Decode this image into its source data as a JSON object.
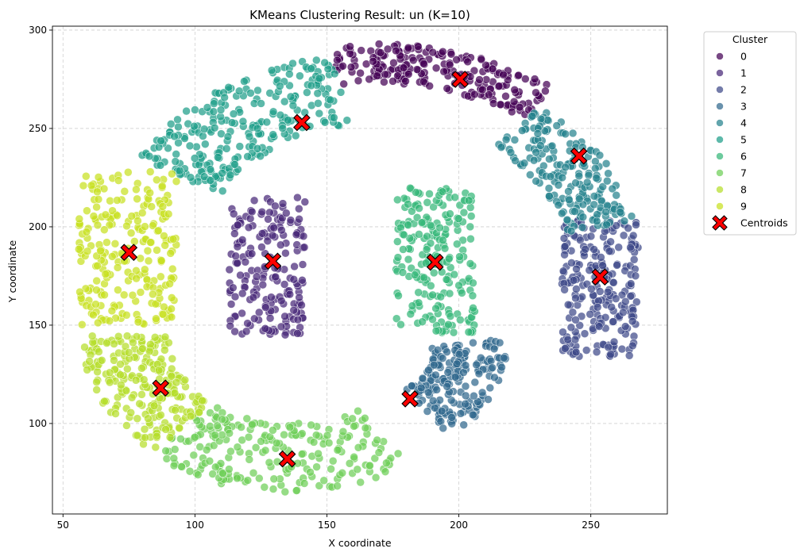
{
  "chart_data": {
    "type": "scatter",
    "title": "KMeans Clustering Result: un (K=10)",
    "xlabel": "X coordinate",
    "ylabel": "Y coordinate",
    "xlim": [
      46,
      279
    ],
    "ylim": [
      54,
      302
    ],
    "xticks": [
      50,
      100,
      150,
      200,
      250
    ],
    "yticks": [
      100,
      150,
      200,
      250,
      300
    ],
    "grid": true,
    "legend": {
      "title": "Cluster",
      "placement": "outside-top-right",
      "entries": [
        "0",
        "1",
        "2",
        "3",
        "4",
        "5",
        "6",
        "7",
        "8",
        "9",
        "Centroids"
      ]
    },
    "cluster_colors": [
      "#440154",
      "#482878",
      "#3e4989",
      "#31688e",
      "#26828e",
      "#1f9e89",
      "#35b779",
      "#6ece58",
      "#b5de2b",
      "#c8e020"
    ],
    "centroid_color": "#ff0000",
    "point_counts": [
      220,
      190,
      230,
      200,
      200,
      260,
      210,
      230,
      230,
      230
    ],
    "regions": [
      {
        "cluster": "0",
        "shape": "arc",
        "cx": 170,
        "cy": 185,
        "r_inner": 88,
        "r_outer": 108,
        "angle_from": 52,
        "angle_to": 100
      },
      {
        "cluster": "1",
        "shape": "rect",
        "x": [
          113,
          142
        ],
        "y": [
          145,
          215
        ]
      },
      {
        "cluster": "2",
        "shape": "rect",
        "x": [
          239,
          268
        ],
        "y": [
          134,
          205
        ]
      },
      {
        "cluster": "3",
        "shape": "arc",
        "cx": 170,
        "cy": 135,
        "r_inner": 20,
        "r_outer": 48,
        "angle_from": -60,
        "angle_to": 10
      },
      {
        "cluster": "4",
        "shape": "arc",
        "cx": 170,
        "cy": 185,
        "r_inner": 70,
        "r_outer": 98,
        "angle_from": 10,
        "angle_to": 52
      },
      {
        "cluster": "5",
        "shape": "arc",
        "cx": 170,
        "cy": 185,
        "r_inner": 68,
        "r_outer": 104,
        "angle_from": 100,
        "angle_to": 152
      },
      {
        "cluster": "6",
        "shape": "rect",
        "x": [
          176,
          206
        ],
        "y": [
          146,
          220
        ]
      },
      {
        "cluster": "7",
        "shape": "arc",
        "cx": 135,
        "cy": 145,
        "r_inner": 45,
        "r_outer": 80,
        "angle_from": 230,
        "angle_to": 305
      },
      {
        "cluster": "8",
        "shape": "arc",
        "cx": 135,
        "cy": 145,
        "r_inner": 45,
        "r_outer": 78,
        "angle_from": 180,
        "angle_to": 230
      },
      {
        "cluster": "9",
        "shape": "rect",
        "x": [
          56,
          93
        ],
        "y": [
          150,
          228
        ]
      }
    ],
    "centroids": [
      {
        "cluster": "0",
        "x": 200.5,
        "y": 275
      },
      {
        "cluster": "1",
        "x": 129.5,
        "y": 182.5
      },
      {
        "cluster": "2",
        "x": 253.5,
        "y": 174.5
      },
      {
        "cluster": "3",
        "x": 181.5,
        "y": 112.5
      },
      {
        "cluster": "4",
        "x": 245.5,
        "y": 236
      },
      {
        "cluster": "5",
        "x": 140.5,
        "y": 253
      },
      {
        "cluster": "6",
        "x": 191,
        "y": 182
      },
      {
        "cluster": "7",
        "x": 135,
        "y": 82
      },
      {
        "cluster": "8",
        "x": 87,
        "y": 118
      },
      {
        "cluster": "9",
        "x": 75,
        "y": 187
      }
    ]
  }
}
